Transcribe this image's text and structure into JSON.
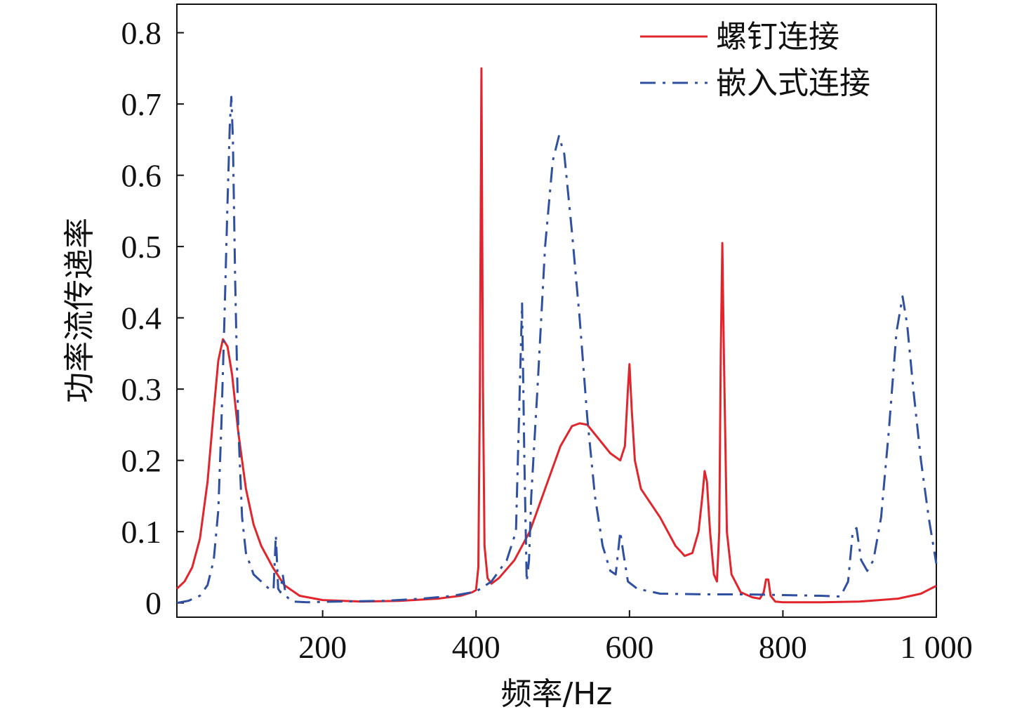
{
  "chart_data": {
    "type": "line",
    "title": "",
    "xlabel": "频率/Hz",
    "ylabel": "功率流传递率",
    "xlim": [
      10,
      1000
    ],
    "ylim": [
      -0.02,
      0.84
    ],
    "xticks": [
      {
        "value": 200,
        "label": "200"
      },
      {
        "value": 400,
        "label": "400"
      },
      {
        "value": 600,
        "label": "600"
      },
      {
        "value": 800,
        "label": "800"
      },
      {
        "value": 1000,
        "label": "1 000"
      }
    ],
    "yticks": [
      {
        "value": 0,
        "label": "0"
      },
      {
        "value": 0.1,
        "label": "0.1"
      },
      {
        "value": 0.2,
        "label": "0.2"
      },
      {
        "value": 0.3,
        "label": "0.3"
      },
      {
        "value": 0.4,
        "label": "0.4"
      },
      {
        "value": 0.5,
        "label": "0.5"
      },
      {
        "value": 0.6,
        "label": "0.6"
      },
      {
        "value": 0.7,
        "label": "0.7"
      },
      {
        "value": 0.8,
        "label": "0.8"
      }
    ],
    "grid": false,
    "legend_position": "top-right",
    "series": [
      {
        "name": "螺钉连接",
        "color": "#e0262c",
        "style": "solid",
        "points": [
          [
            10,
            0.02
          ],
          [
            20,
            0.03
          ],
          [
            30,
            0.05
          ],
          [
            40,
            0.09
          ],
          [
            50,
            0.17
          ],
          [
            58,
            0.27
          ],
          [
            64,
            0.34
          ],
          [
            70,
            0.37
          ],
          [
            76,
            0.36
          ],
          [
            82,
            0.32
          ],
          [
            90,
            0.24
          ],
          [
            100,
            0.16
          ],
          [
            110,
            0.11
          ],
          [
            120,
            0.08
          ],
          [
            135,
            0.05
          ],
          [
            150,
            0.025
          ],
          [
            170,
            0.01
          ],
          [
            200,
            0.004
          ],
          [
            250,
            0.002
          ],
          [
            300,
            0.003
          ],
          [
            350,
            0.006
          ],
          [
            380,
            0.01
          ],
          [
            395,
            0.015
          ],
          [
            400,
            0.018
          ],
          [
            403,
            0.05
          ],
          [
            405,
            0.3
          ],
          [
            407,
            0.75
          ],
          [
            409,
            0.3
          ],
          [
            411,
            0.08
          ],
          [
            415,
            0.035
          ],
          [
            420,
            0.027
          ],
          [
            430,
            0.035
          ],
          [
            450,
            0.06
          ],
          [
            470,
            0.1
          ],
          [
            490,
            0.16
          ],
          [
            510,
            0.22
          ],
          [
            525,
            0.248
          ],
          [
            535,
            0.252
          ],
          [
            545,
            0.25
          ],
          [
            560,
            0.23
          ],
          [
            575,
            0.21
          ],
          [
            588,
            0.2
          ],
          [
            594,
            0.22
          ],
          [
            598,
            0.3
          ],
          [
            600,
            0.335
          ],
          [
            603,
            0.27
          ],
          [
            607,
            0.2
          ],
          [
            615,
            0.16
          ],
          [
            640,
            0.12
          ],
          [
            660,
            0.08
          ],
          [
            672,
            0.066
          ],
          [
            682,
            0.07
          ],
          [
            690,
            0.1
          ],
          [
            695,
            0.15
          ],
          [
            698,
            0.185
          ],
          [
            701,
            0.17
          ],
          [
            705,
            0.1
          ],
          [
            710,
            0.04
          ],
          [
            714,
            0.03
          ],
          [
            717,
            0.1
          ],
          [
            719,
            0.35
          ],
          [
            721,
            0.505
          ],
          [
            723,
            0.35
          ],
          [
            727,
            0.1
          ],
          [
            733,
            0.04
          ],
          [
            745,
            0.015
          ],
          [
            760,
            0.008
          ],
          [
            770,
            0.006
          ],
          [
            775,
            0.015
          ],
          [
            778,
            0.033
          ],
          [
            781,
            0.033
          ],
          [
            784,
            0.01
          ],
          [
            790,
            0.002
          ],
          [
            800,
            0.001
          ],
          [
            850,
            0.001
          ],
          [
            900,
            0.002
          ],
          [
            950,
            0.006
          ],
          [
            980,
            0.013
          ],
          [
            1000,
            0.024
          ]
        ]
      },
      {
        "name": "嵌入式连接",
        "color": "#2f4fa0",
        "style": "dash-dot",
        "points": [
          [
            10,
            0.0
          ],
          [
            25,
            0.003
          ],
          [
            40,
            0.01
          ],
          [
            50,
            0.025
          ],
          [
            58,
            0.06
          ],
          [
            64,
            0.13
          ],
          [
            68,
            0.25
          ],
          [
            72,
            0.4
          ],
          [
            76,
            0.56
          ],
          [
            79,
            0.67
          ],
          [
            81,
            0.71
          ],
          [
            83,
            0.65
          ],
          [
            86,
            0.45
          ],
          [
            90,
            0.25
          ],
          [
            95,
            0.12
          ],
          [
            100,
            0.07
          ],
          [
            110,
            0.04
          ],
          [
            120,
            0.03
          ],
          [
            130,
            0.02
          ],
          [
            136,
            0.018
          ],
          [
            139,
            0.095
          ],
          [
            142,
            0.02
          ],
          [
            145,
            0.015
          ],
          [
            148,
            0.04
          ],
          [
            152,
            0.01
          ],
          [
            160,
            0.002
          ],
          [
            180,
            0.001
          ],
          [
            220,
            0.002
          ],
          [
            280,
            0.003
          ],
          [
            330,
            0.006
          ],
          [
            370,
            0.01
          ],
          [
            400,
            0.016
          ],
          [
            420,
            0.03
          ],
          [
            440,
            0.06
          ],
          [
            452,
            0.1
          ],
          [
            457,
            0.3
          ],
          [
            460,
            0.42
          ],
          [
            463,
            0.2
          ],
          [
            466,
            0.03
          ],
          [
            469,
            0.06
          ],
          [
            472,
            0.15
          ],
          [
            480,
            0.3
          ],
          [
            490,
            0.5
          ],
          [
            500,
            0.62
          ],
          [
            508,
            0.655
          ],
          [
            515,
            0.63
          ],
          [
            525,
            0.52
          ],
          [
            535,
            0.4
          ],
          [
            545,
            0.26
          ],
          [
            555,
            0.15
          ],
          [
            565,
            0.08
          ],
          [
            575,
            0.045
          ],
          [
            582,
            0.04
          ],
          [
            588,
            0.1
          ],
          [
            592,
            0.07
          ],
          [
            598,
            0.03
          ],
          [
            610,
            0.02
          ],
          [
            640,
            0.013
          ],
          [
            700,
            0.012
          ],
          [
            750,
            0.012
          ],
          [
            800,
            0.011
          ],
          [
            850,
            0.01
          ],
          [
            875,
            0.009
          ],
          [
            885,
            0.03
          ],
          [
            891,
            0.1
          ],
          [
            896,
            0.105
          ],
          [
            902,
            0.06
          ],
          [
            910,
            0.045
          ],
          [
            918,
            0.06
          ],
          [
            928,
            0.12
          ],
          [
            938,
            0.24
          ],
          [
            948,
            0.38
          ],
          [
            956,
            0.43
          ],
          [
            962,
            0.39
          ],
          [
            970,
            0.3
          ],
          [
            980,
            0.2
          ],
          [
            990,
            0.12
          ],
          [
            1000,
            0.055
          ]
        ]
      }
    ]
  }
}
